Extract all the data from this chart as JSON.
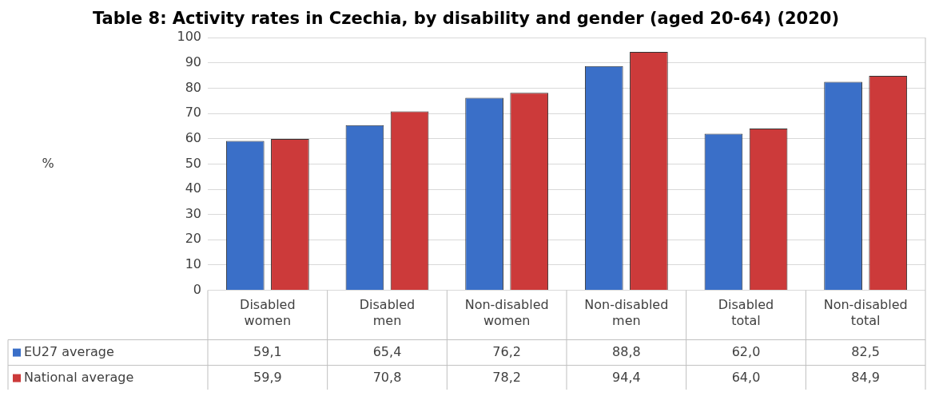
{
  "chart_data": {
    "type": "bar",
    "title": "Table 8: Activity rates in Czechia, by disability and gender (aged 20-64) (2020)",
    "annotations": [
      "%"
    ],
    "categories": [
      "Disabled women",
      "Disabled men",
      "Non-disabled women",
      "Non-disabled men",
      "Disabled total",
      "Non-disabled total"
    ],
    "series": [
      {
        "name": "EU27 average",
        "color": "#3a6fc8",
        "values": [
          59.1,
          65.4,
          76.2,
          88.8,
          62.0,
          82.5
        ],
        "value_labels": [
          "59,1",
          "65,4",
          "76,2",
          "88,8",
          "62,0",
          "82,5"
        ]
      },
      {
        "name": "National average",
        "color": "#cc3a3a",
        "values": [
          59.9,
          70.8,
          78.2,
          94.4,
          64.0,
          84.9
        ],
        "value_labels": [
          "59,9",
          "70,8",
          "78,2",
          "94,4",
          "64,0",
          "84,9"
        ]
      }
    ],
    "ylim": [
      0,
      100
    ],
    "yticks": [
      0,
      10,
      20,
      30,
      40,
      50,
      60,
      70,
      80,
      90,
      100
    ],
    "grid": "y",
    "legend": "bottom"
  }
}
